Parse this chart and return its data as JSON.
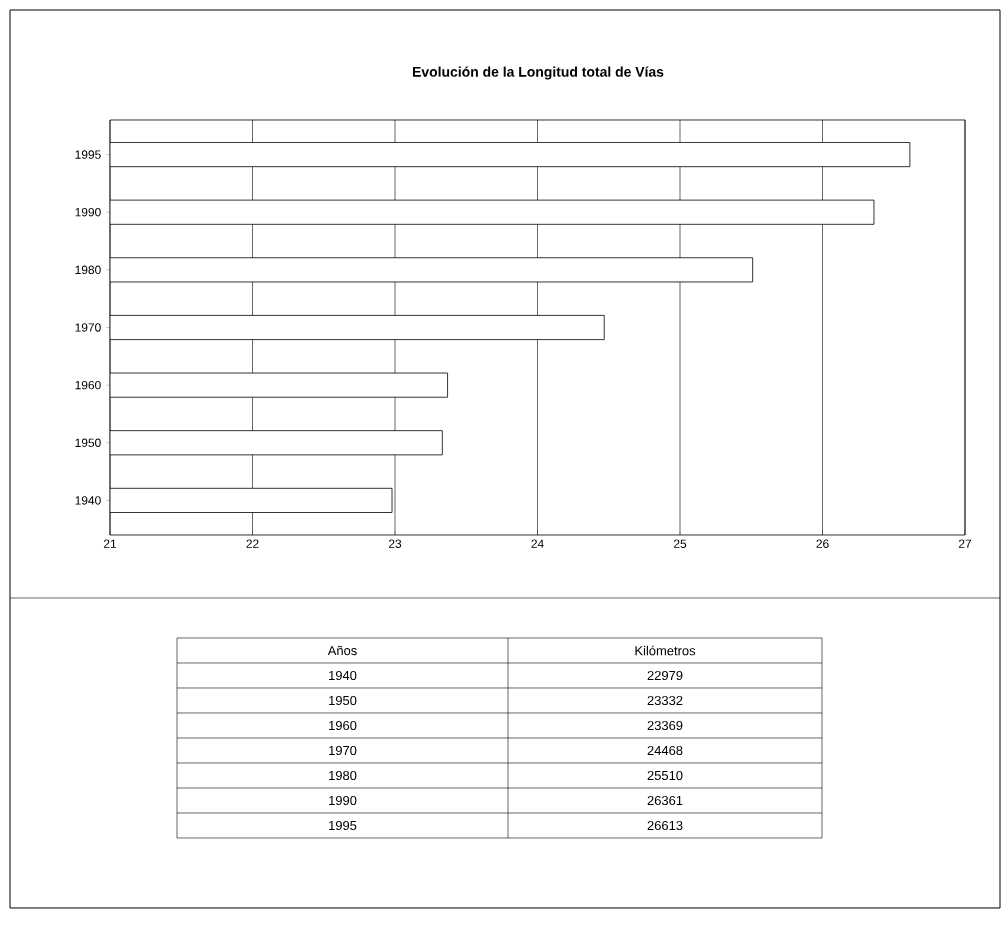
{
  "chart_data": {
    "type": "bar",
    "orientation": "horizontal",
    "title": "Evolución de la Longitud total de Vías",
    "categories": [
      "1995",
      "1990",
      "1980",
      "1970",
      "1960",
      "1950",
      "1940"
    ],
    "values": [
      26.613,
      26.361,
      25.51,
      24.468,
      23.369,
      23.332,
      22.979
    ],
    "color": "#ffffff",
    "xlim": [
      21,
      27
    ],
    "xticks": [
      21,
      22,
      23,
      24,
      25,
      26,
      27
    ],
    "grid": "x",
    "annotations": [
      "Años",
      "Kilómetros",
      "22979",
      "23332",
      "23369",
      "24468",
      "25510",
      "26361",
      "26613"
    ]
  }
}
